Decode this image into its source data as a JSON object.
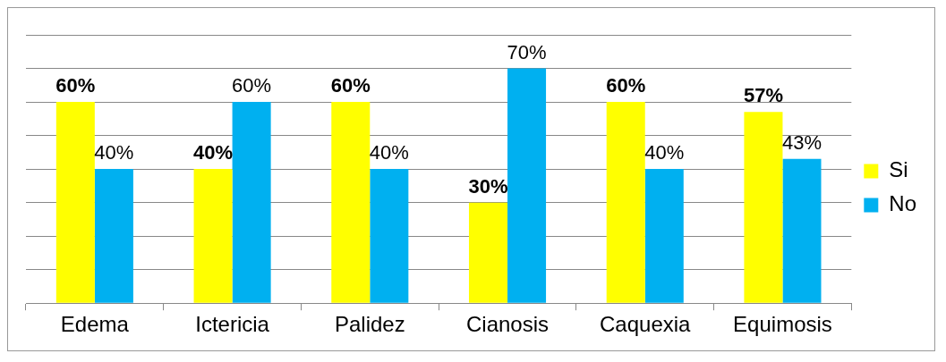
{
  "chart_data": {
    "type": "bar",
    "categories": [
      "Edema",
      "Ictericia",
      "Palidez",
      "Cianosis",
      "Caquexia",
      "Equimosis"
    ],
    "series": [
      {
        "name": "Si",
        "color": "#ffff00",
        "values": [
          60,
          40,
          60,
          30,
          60,
          57
        ],
        "value_labels": [
          "60%",
          "40%",
          "60%",
          "30%",
          "60%",
          "57%"
        ]
      },
      {
        "name": "No",
        "color": "#00b0f0",
        "values": [
          40,
          60,
          40,
          70,
          40,
          43
        ],
        "value_labels": [
          "40%",
          "60%",
          "40%",
          "70%",
          "40%",
          "43%"
        ]
      }
    ],
    "ylim": [
      0,
      80
    ],
    "yticks": [
      {
        "value": 0,
        "label": null
      },
      {
        "value": 10,
        "label": null
      },
      {
        "value": 20,
        "label": null
      },
      {
        "value": 30,
        "label": null
      },
      {
        "value": 40,
        "label": null
      },
      {
        "value": 50,
        "label": null
      },
      {
        "value": 60,
        "label": null
      },
      {
        "value": 70,
        "label": null
      },
      {
        "value": 80,
        "label": null
      }
    ],
    "grid": "y",
    "legend": "right",
    "tick_labels": "x"
  }
}
